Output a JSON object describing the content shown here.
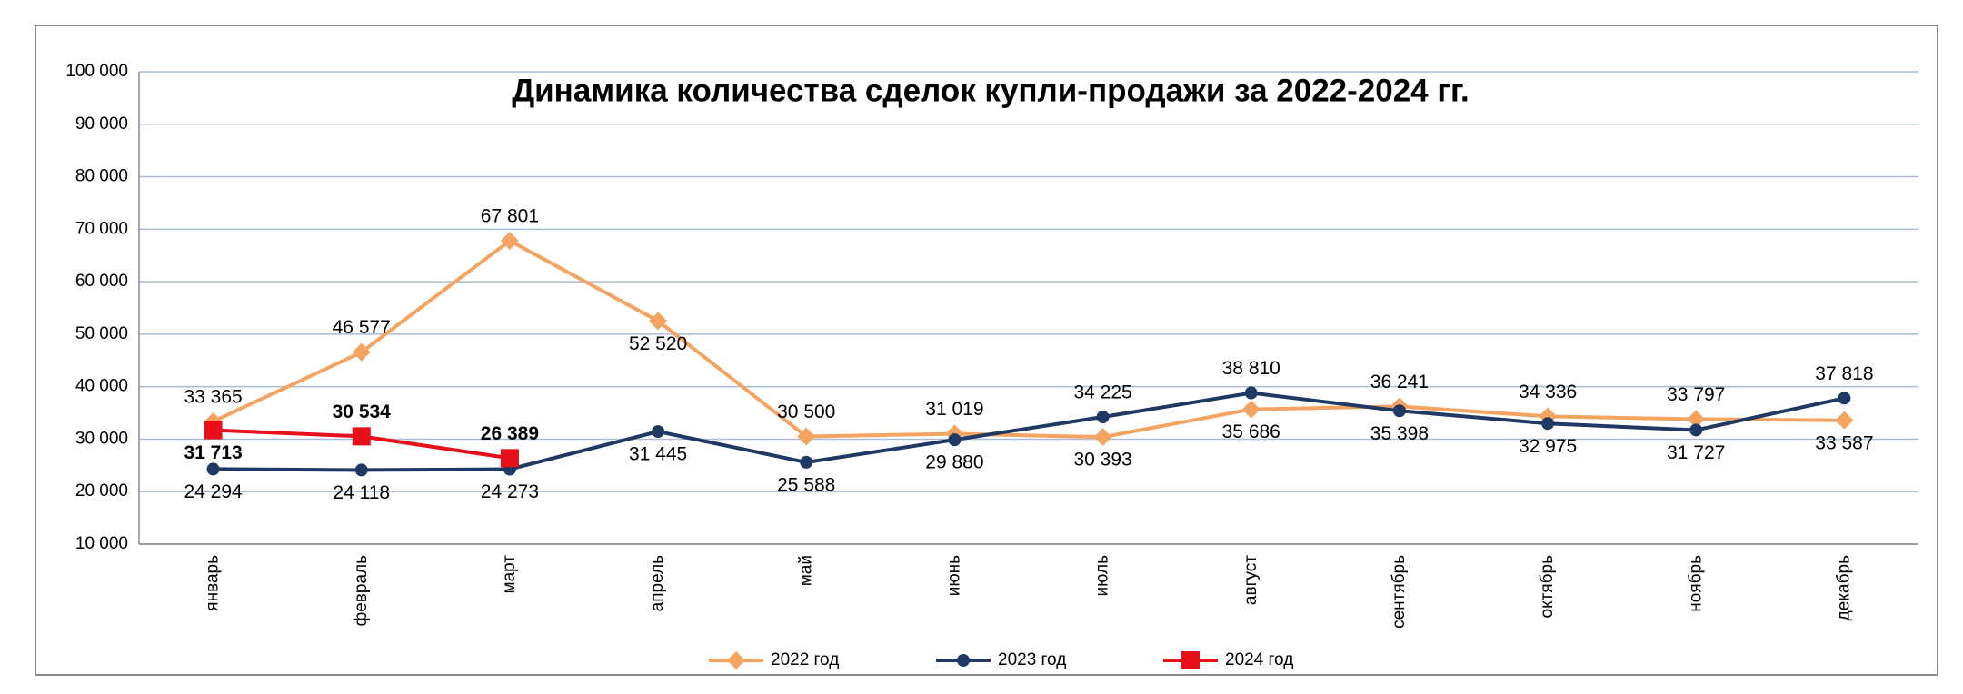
{
  "chart_data": {
    "type": "line",
    "title": "Динамика количества сделок купли-продажи за 2022-2024 гг.",
    "categories": [
      "январь",
      "февраль",
      "март",
      "апрель",
      "май",
      "июнь",
      "июль",
      "август",
      "сентябрь",
      "октябрь",
      "ноябрь",
      "декабрь"
    ],
    "series": [
      {
        "name": "2022 год",
        "color": "#f4a460",
        "label_color": "#a0642a",
        "marker": "diamond",
        "values": [
          33365,
          46577,
          67801,
          52520,
          30500,
          31019,
          30393,
          35686,
          36241,
          34336,
          33797,
          33587
        ],
        "value_labels": [
          "33 365",
          "46 577",
          "67 801",
          "52 520",
          "30 500",
          "31 019",
          "30 393",
          "35 686",
          "36 241",
          "34 336",
          "33 797",
          "33 587"
        ]
      },
      {
        "name": "2023 год",
        "color": "#1f3864",
        "label_color": "#1f2f4a",
        "marker": "circle",
        "values": [
          24294,
          24118,
          24273,
          31445,
          25588,
          29880,
          34225,
          38810,
          35398,
          32975,
          31727,
          37818
        ],
        "value_labels": [
          "24 294",
          "24 118",
          "24 273",
          "31 445",
          "25 588",
          "29 880",
          "34 225",
          "38 810",
          "35 398",
          "32 975",
          "31 727",
          "37 818"
        ]
      },
      {
        "name": "2024 год",
        "color": "#e8101a",
        "label_color": "#c00000",
        "marker": "square",
        "values": [
          31713,
          30534,
          26389,
          null,
          null,
          null,
          null,
          null,
          null,
          null,
          null,
          null
        ],
        "value_labels": [
          "31 713",
          "30 534",
          "26 389",
          null,
          null,
          null,
          null,
          null,
          null,
          null,
          null,
          null
        ]
      }
    ],
    "ylim": [
      10000,
      100000
    ],
    "yticks": [
      {
        "value": 10000,
        "label": "10 000"
      },
      {
        "value": 20000,
        "label": "20 000"
      },
      {
        "value": 30000,
        "label": "30 000"
      },
      {
        "value": 40000,
        "label": "40 000"
      },
      {
        "value": 50000,
        "label": "50 000"
      },
      {
        "value": 60000,
        "label": "60 000"
      },
      {
        "value": 70000,
        "label": "70 000"
      },
      {
        "value": 80000,
        "label": "80 000"
      },
      {
        "value": 90000,
        "label": "90 000"
      },
      {
        "value": 100000,
        "label": "100 000"
      }
    ],
    "grid": true,
    "legend": "bottom"
  }
}
